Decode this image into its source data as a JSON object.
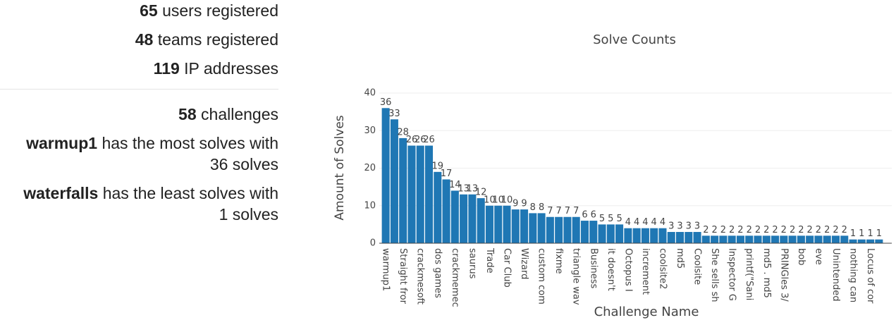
{
  "stats_top": [
    {
      "value": "65",
      "text": "users registered"
    },
    {
      "value": "48",
      "text": "teams registered"
    },
    {
      "value": "119",
      "text": "IP addresses"
    }
  ],
  "stats_bottom": [
    {
      "value": "58",
      "text": "challenges"
    },
    {
      "value": "warmup1",
      "text": "has the most solves with",
      "line2": "36 solves"
    },
    {
      "value": "waterfalls",
      "text": "has the least solves with",
      "line2": "1 solves"
    }
  ],
  "chart_data": {
    "type": "bar",
    "title": "Solve Counts",
    "xlabel": "Challenge Name",
    "ylabel": "Amount of Solves",
    "color": "#1f77b4",
    "grid": true,
    "ylim": [
      0,
      40
    ],
    "yticks": [
      0,
      10,
      20,
      30,
      40
    ],
    "categories": [
      "warmup1",
      null,
      "Straight fror",
      null,
      "crackmesoft",
      null,
      "dos games",
      null,
      "crackmemec",
      null,
      "saurus",
      null,
      "Trade",
      null,
      "Car Club",
      null,
      "Wizard",
      null,
      "custom com",
      null,
      "fixme",
      null,
      "triangle wav",
      null,
      "Business",
      null,
      "it doesn't",
      null,
      "Octopus I",
      null,
      "increment",
      null,
      "coolsite2",
      null,
      "md5",
      null,
      "Coolsite",
      null,
      "She sells sh",
      null,
      "Inspector G",
      null,
      "printf(\"Sani",
      null,
      "md5 . md5",
      null,
      "PRINGles 3/",
      null,
      "bob",
      null,
      "eve",
      null,
      "Unintended",
      null,
      "nothing can",
      null,
      "Locus of cor",
      null
    ],
    "values": [
      36,
      33,
      28,
      26,
      26,
      26,
      19,
      17,
      14,
      13,
      13,
      12,
      10,
      10,
      10,
      9,
      9,
      8,
      8,
      7,
      7,
      7,
      7,
      6,
      6,
      5,
      5,
      5,
      4,
      4,
      4,
      4,
      4,
      3,
      3,
      3,
      3,
      2,
      2,
      2,
      2,
      2,
      2,
      2,
      2,
      2,
      2,
      2,
      2,
      2,
      2,
      2,
      2,
      2,
      1,
      1,
      1,
      1
    ]
  }
}
